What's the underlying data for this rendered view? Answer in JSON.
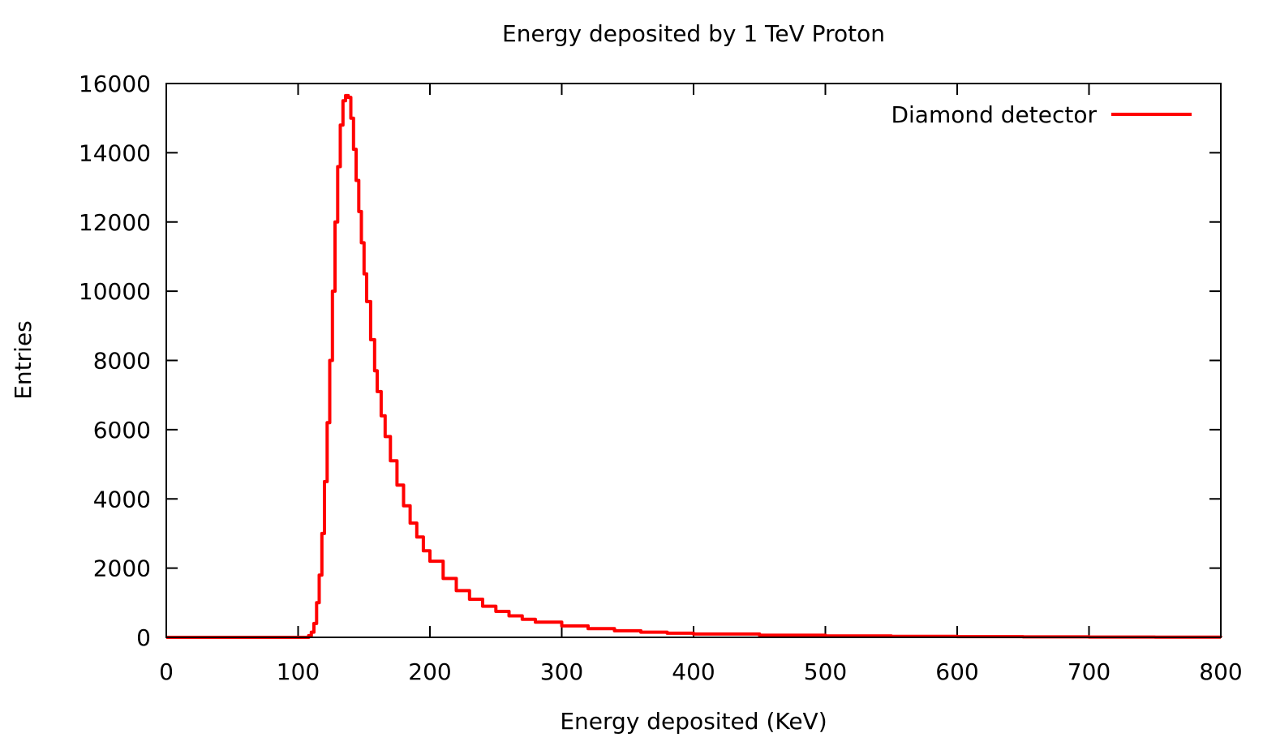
{
  "chart_data": {
    "type": "line",
    "title": "Energy deposited by 1 TeV Proton",
    "xlabel": "Energy deposited (KeV)",
    "ylabel": "Entries",
    "xlim": [
      0,
      800
    ],
    "ylim": [
      0,
      16000
    ],
    "x_ticks": [
      "0",
      "100",
      "200",
      "300",
      "400",
      "500",
      "600",
      "700",
      "800"
    ],
    "y_ticks": [
      "0",
      "2000",
      "4000",
      "6000",
      "8000",
      "10000",
      "12000",
      "14000",
      "16000"
    ],
    "grid": false,
    "legend_position": "top-right",
    "series": [
      {
        "name": "Diamond detector",
        "color": "#ff0000",
        "x": [
          0,
          100,
          105,
          108,
          110,
          112,
          114,
          116,
          118,
          120,
          122,
          124,
          126,
          128,
          130,
          132,
          134,
          136,
          138,
          140,
          142,
          144,
          146,
          148,
          150,
          152,
          155,
          158,
          160,
          163,
          166,
          170,
          175,
          180,
          185,
          190,
          195,
          200,
          210,
          220,
          230,
          240,
          250,
          260,
          270,
          280,
          300,
          320,
          340,
          360,
          380,
          400,
          450,
          500,
          550,
          600,
          650,
          700,
          750,
          800
        ],
        "values": [
          0,
          0,
          0,
          50,
          150,
          400,
          1000,
          1800,
          3000,
          4500,
          6200,
          8000,
          10000,
          12000,
          13600,
          14800,
          15500,
          15650,
          15600,
          15000,
          14100,
          13200,
          12300,
          11400,
          10500,
          9700,
          8600,
          7700,
          7100,
          6400,
          5800,
          5100,
          4400,
          3800,
          3300,
          2900,
          2500,
          2200,
          1700,
          1350,
          1100,
          900,
          750,
          620,
          520,
          440,
          330,
          250,
          190,
          150,
          120,
          95,
          60,
          40,
          28,
          20,
          14,
          10,
          6,
          4
        ]
      }
    ]
  }
}
